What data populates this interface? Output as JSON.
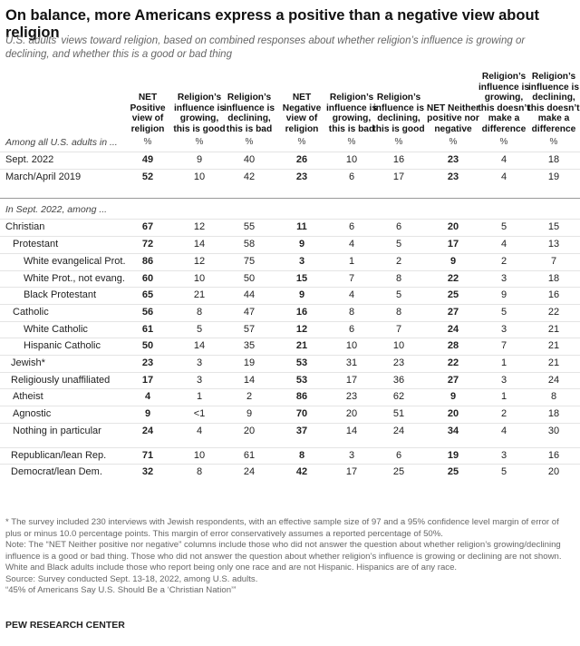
{
  "title": "On balance, more Americans express a positive than a negative view about religion",
  "subtitle": "U.S. adults’ views toward religion, based on combined responses about whether religion’s influence is growing or declining, and whether this is a good or bad thing",
  "columns": [
    "NET Positive view of religion",
    "Religion’s influence is growing, this is good",
    "Religion’s influence is declining, this is bad",
    "NET Negative view of religion",
    "Religion’s influence is growing, this is bad",
    "Religion’s influence is declining, this is good",
    "NET Neither positive nor negative",
    "Religion’s influence is growing, this doesn’t make a difference",
    "Religion’s influence is declining, this doesn’t make a difference"
  ],
  "sections": [
    {
      "label": "Among all U.S. adults in ...",
      "units": [
        "%",
        "%",
        "%",
        "%",
        "%",
        "%",
        "%",
        "%",
        "%"
      ],
      "rows": [
        {
          "label": "Sept. 2022",
          "values": [
            49,
            9,
            40,
            26,
            10,
            16,
            23,
            4,
            18
          ]
        },
        {
          "label": "March/April 2019",
          "values": [
            52,
            10,
            42,
            23,
            6,
            17,
            23,
            4,
            19
          ]
        }
      ]
    },
    {
      "label": "In Sept. 2022, among ...",
      "rows": [
        {
          "label": "Christian",
          "values": [
            67,
            12,
            55,
            11,
            6,
            6,
            20,
            5,
            15
          ]
        },
        {
          "label": "Protestant",
          "values": [
            72,
            14,
            58,
            9,
            4,
            5,
            17,
            4,
            13
          ]
        },
        {
          "label": "White evangelical Prot.",
          "values": [
            86,
            12,
            75,
            3,
            1,
            2,
            9,
            2,
            7
          ]
        },
        {
          "label": "White Prot., not evang.",
          "values": [
            60,
            10,
            50,
            15,
            7,
            8,
            22,
            3,
            18
          ]
        },
        {
          "label": "Black Protestant",
          "values": [
            65,
            21,
            44,
            9,
            4,
            5,
            25,
            9,
            16
          ]
        },
        {
          "label": "Catholic",
          "values": [
            56,
            8,
            47,
            16,
            8,
            8,
            27,
            5,
            22
          ]
        },
        {
          "label": "White Catholic",
          "values": [
            61,
            5,
            57,
            12,
            6,
            7,
            24,
            3,
            21
          ]
        },
        {
          "label": "Hispanic Catholic",
          "values": [
            50,
            14,
            35,
            21,
            10,
            10,
            28,
            7,
            21
          ]
        },
        {
          "label": "Jewish*",
          "values": [
            23,
            3,
            19,
            53,
            31,
            23,
            22,
            1,
            21
          ]
        },
        {
          "label": "Religiously unaffiliated",
          "values": [
            17,
            3,
            14,
            53,
            17,
            36,
            27,
            3,
            24
          ]
        },
        {
          "label": "Atheist",
          "values": [
            4,
            1,
            2,
            86,
            23,
            62,
            9,
            1,
            8
          ]
        },
        {
          "label": "Agnostic",
          "values": [
            9,
            "<1",
            9,
            70,
            20,
            51,
            20,
            2,
            18
          ]
        },
        {
          "label": "Nothing in particular",
          "values": [
            24,
            4,
            20,
            37,
            14,
            24,
            34,
            4,
            30
          ]
        },
        {
          "label": "Republican/lean Rep.",
          "values": [
            71,
            10,
            61,
            8,
            3,
            6,
            19,
            3,
            16
          ]
        },
        {
          "label": "Democrat/lean Dem.",
          "values": [
            32,
            8,
            24,
            42,
            17,
            25,
            25,
            5,
            20
          ]
        }
      ]
    }
  ],
  "notes": [
    "* The survey included 230 interviews with Jewish respondents, with an effective sample size of 97 and a 95% confidence level margin of error of plus or minus 10.0 percentage points. This margin of error conservatively assumes a reported percentage of 50%.",
    "Note: The “NET Neither positive nor negative” columns include those who did not answer the question about whether religion’s growing/declining influence is a good or bad thing. Those who did not answer the question about whether religion’s influence is growing or declining are not shown. White and Black adults include those who report being only one race and are not Hispanic. Hispanics are of any race.",
    "Source: Survey conducted Sept. 13-18, 2022, among U.S. adults.",
    "“45% of Americans Say U.S. Should Be a ‘Christian Nation’”"
  ],
  "logo": "PEW RESEARCH CENTER"
}
